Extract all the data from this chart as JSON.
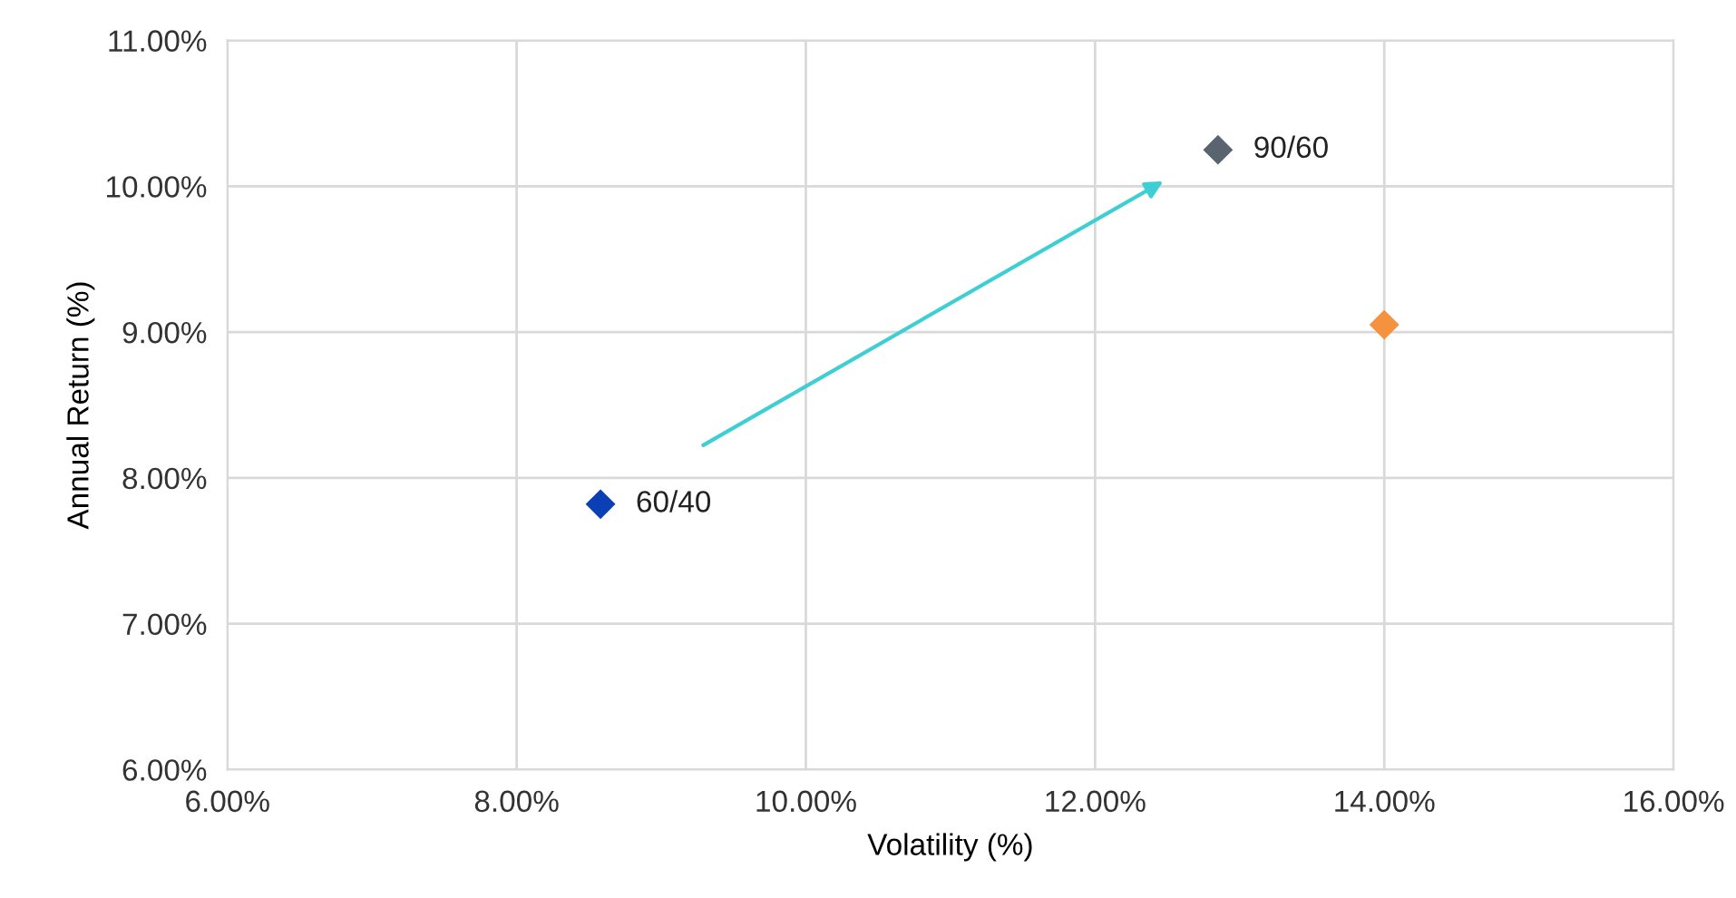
{
  "chart_data": {
    "type": "scatter",
    "xlabel": "Volatility (%)",
    "ylabel": "Annual Return (%)",
    "series": [
      {
        "name": "60/40",
        "color": "#0a3fb5",
        "x": [
          8.58
        ],
        "values": [
          7.82
        ]
      },
      {
        "name": "90/60",
        "color": "#5a6470",
        "x": [
          12.85
        ],
        "values": [
          10.25
        ]
      },
      {
        "color": "#f5923e",
        "x": [
          14.0
        ],
        "values": [
          9.05
        ]
      }
    ],
    "xlim": [
      6,
      16
    ],
    "ylim": [
      6,
      11
    ],
    "xticks": [
      {
        "value": 6,
        "label": "6.00%"
      },
      {
        "value": 8,
        "label": "8.00%"
      },
      {
        "value": 10,
        "label": "10.00%"
      },
      {
        "value": 12,
        "label": "12.00%"
      },
      {
        "value": 14,
        "label": "14.00%"
      },
      {
        "value": 16,
        "label": "16.00%"
      }
    ],
    "yticks": [
      {
        "value": 6,
        "label": "6.00%"
      },
      {
        "value": 7,
        "label": "7.00%"
      },
      {
        "value": 8,
        "label": "8.00%"
      },
      {
        "value": 9,
        "label": "9.00%"
      },
      {
        "value": 10,
        "label": "10.00%"
      },
      {
        "value": 11,
        "label": "11.00%"
      }
    ],
    "grid": true,
    "marker": "diamond"
  }
}
